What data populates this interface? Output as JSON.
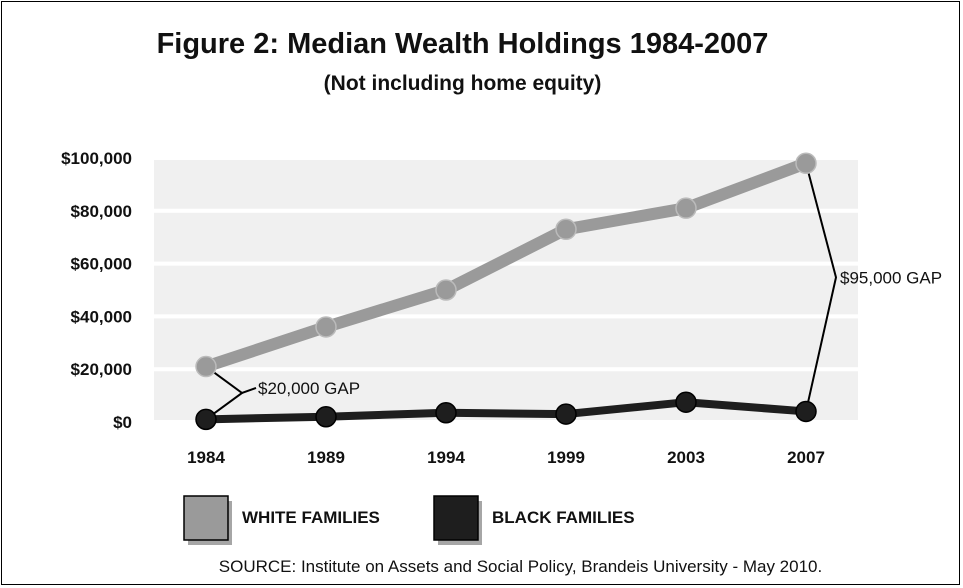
{
  "chart_data": {
    "type": "line",
    "title": "Figure 2: Median Wealth Holdings 1984-2007",
    "subtitle": "(Not including home equity)",
    "categories": [
      "1984",
      "1989",
      "1994",
      "1999",
      "2003",
      "2007"
    ],
    "series": [
      {
        "name": "WHITE FAMILIES",
        "color": "#9a9a9a",
        "values": [
          21000,
          36000,
          50000,
          73000,
          81000,
          98000
        ]
      },
      {
        "name": "BLACK FAMILIES",
        "color": "#1e1e1e",
        "values": [
          1000,
          2000,
          3500,
          3000,
          7500,
          4000
        ]
      }
    ],
    "y_ticks": [
      "$0",
      "$20,000",
      "$40,000",
      "$60,000",
      "$80,000",
      "$100,000"
    ],
    "y_tick_values": [
      0,
      20000,
      40000,
      60000,
      80000,
      100000
    ],
    "ylim": [
      0,
      100000
    ],
    "grid": true,
    "legend": "bottom",
    "annotations": [
      {
        "text": "$20,000 GAP",
        "year": "1984"
      },
      {
        "text": "$95,000 GAP",
        "year": "2007"
      }
    ],
    "source": "SOURCE: Institute on Assets and Social Policy, Brandeis University - May 2010."
  }
}
